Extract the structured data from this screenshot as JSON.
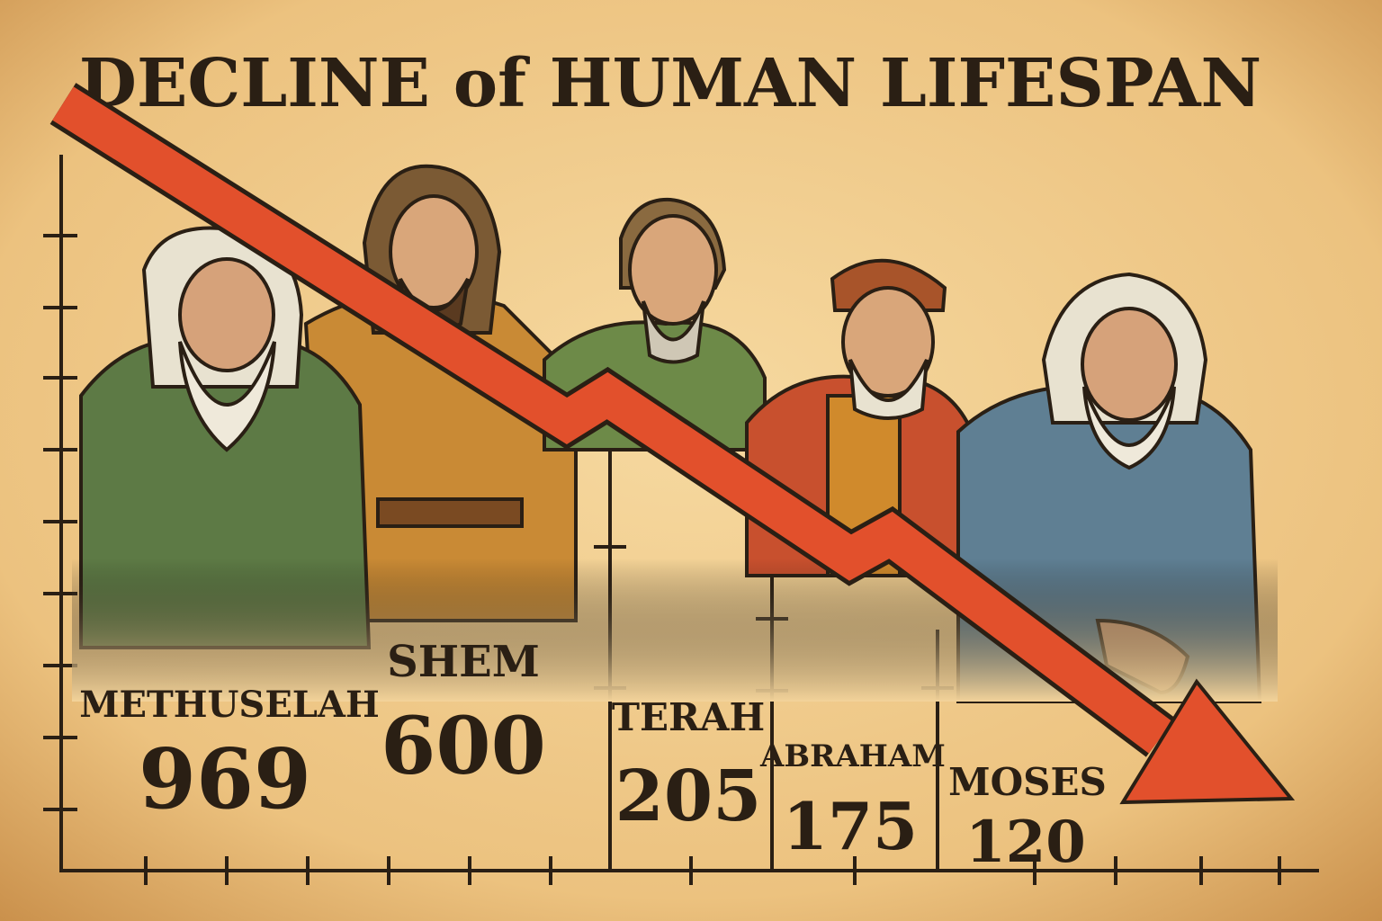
{
  "title": "DECLINE of HUMAN LIFESPAN",
  "figures": [
    {
      "name": "METHUSELAH",
      "lifespan": 969
    },
    {
      "name": "SHEM",
      "lifespan": 600
    },
    {
      "name": "TERAH",
      "lifespan": 205
    },
    {
      "name": "ABRAHAM",
      "lifespan": 175
    },
    {
      "name": "MOSES",
      "lifespan": 120
    }
  ]
}
